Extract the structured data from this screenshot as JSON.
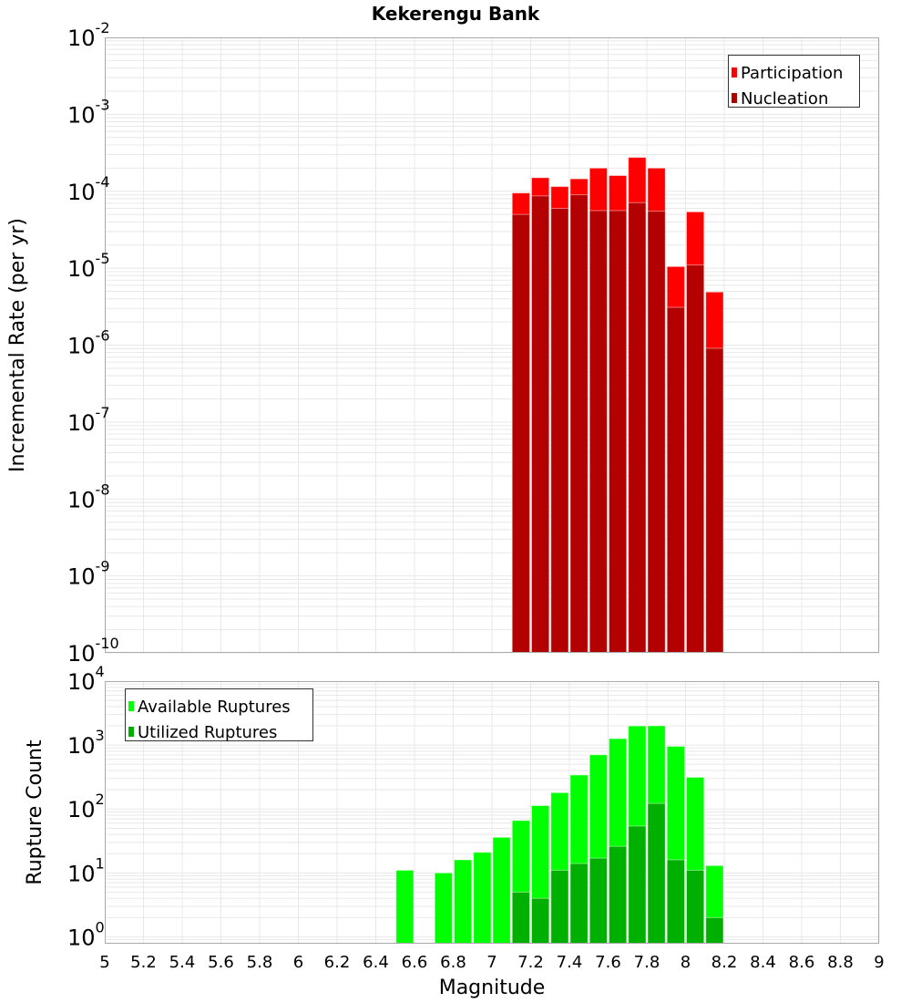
{
  "chart_data": [
    {
      "type": "bar",
      "title": "Kekerengu Bank",
      "xlabel": "Magnitude",
      "ylabel": "Incremental Rate (per yr)",
      "yscale": "log",
      "xlim": [
        5,
        9
      ],
      "ylim": [
        1e-10,
        0.01
      ],
      "grid": true,
      "legend_position": "top-right",
      "bin_width": 0.1,
      "x": [
        7.15,
        7.25,
        7.35,
        7.45,
        7.55,
        7.65,
        7.75,
        7.85,
        7.95,
        8.05,
        8.15
      ],
      "series": [
        {
          "name": "Participation",
          "color": "#ff0000",
          "values": [
            9.5e-05,
            0.00015,
            0.000115,
            0.000145,
            0.0002,
            0.00016,
            0.000275,
            0.0002,
            1.05e-05,
            5.4e-05,
            4.9e-06
          ]
        },
        {
          "name": "Nucleation",
          "color": "#b30000",
          "values": [
            5e-05,
            8.7e-05,
            6e-05,
            9e-05,
            5.6e-05,
            5.6e-05,
            7.1e-05,
            5.5e-05,
            3.1e-06,
            1.1e-05,
            9.1e-07
          ]
        }
      ],
      "yticks": [
        {
          "base": "10",
          "exp": "-2",
          "value": 0.01
        },
        {
          "base": "10",
          "exp": "-3",
          "value": 0.001
        },
        {
          "base": "10",
          "exp": "-4",
          "value": 0.0001
        },
        {
          "base": "10",
          "exp": "-5",
          "value": 1e-05
        },
        {
          "base": "10",
          "exp": "-6",
          "value": 1e-06
        },
        {
          "base": "10",
          "exp": "-7",
          "value": 1e-07
        },
        {
          "base": "10",
          "exp": "-8",
          "value": 1e-08
        },
        {
          "base": "10",
          "exp": "-9",
          "value": 1e-09
        },
        {
          "base": "10",
          "exp": "-10",
          "value": 1e-10
        }
      ]
    },
    {
      "type": "bar",
      "xlabel": "Magnitude",
      "ylabel": "Rupture Count",
      "yscale": "log",
      "xlim": [
        5,
        9
      ],
      "ylim": [
        0.78,
        10000
      ],
      "grid": true,
      "legend_position": "top-left",
      "bin_width": 0.1,
      "x": [
        6.55,
        6.65,
        6.75,
        6.85,
        6.95,
        7.05,
        7.15,
        7.25,
        7.35,
        7.45,
        7.55,
        7.65,
        7.75,
        7.85,
        7.95,
        8.05,
        8.15
      ],
      "series": [
        {
          "name": "Available Ruptures",
          "color": "#00ff00",
          "values": [
            11,
            0,
            10,
            16,
            21,
            36,
            66,
            113,
            180,
            340,
            705,
            1260,
            1990,
            2000,
            955,
            313,
            13
          ]
        },
        {
          "name": "Utilized Ruptures",
          "color": "#00b000",
          "values": [
            0,
            0,
            0,
            0,
            0,
            0,
            5,
            4,
            11,
            14,
            17,
            26,
            54,
            122,
            16,
            11,
            2
          ]
        }
      ],
      "yticks": [
        {
          "base": "10",
          "exp": "4",
          "value": 10000.0
        },
        {
          "base": "10",
          "exp": "3",
          "value": 1000.0
        },
        {
          "base": "10",
          "exp": "2",
          "value": 100.0
        },
        {
          "base": "10",
          "exp": "1",
          "value": 10.0
        },
        {
          "base": "10",
          "exp": "0",
          "value": 1.0
        }
      ],
      "xticks": [
        "5",
        "5.2",
        "5.4",
        "5.6",
        "5.8",
        "6",
        "6.2",
        "6.4",
        "6.6",
        "6.8",
        "7",
        "7.2",
        "7.4",
        "7.6",
        "7.8",
        "8",
        "8.2",
        "8.4",
        "8.6",
        "8.8",
        "9"
      ]
    }
  ]
}
